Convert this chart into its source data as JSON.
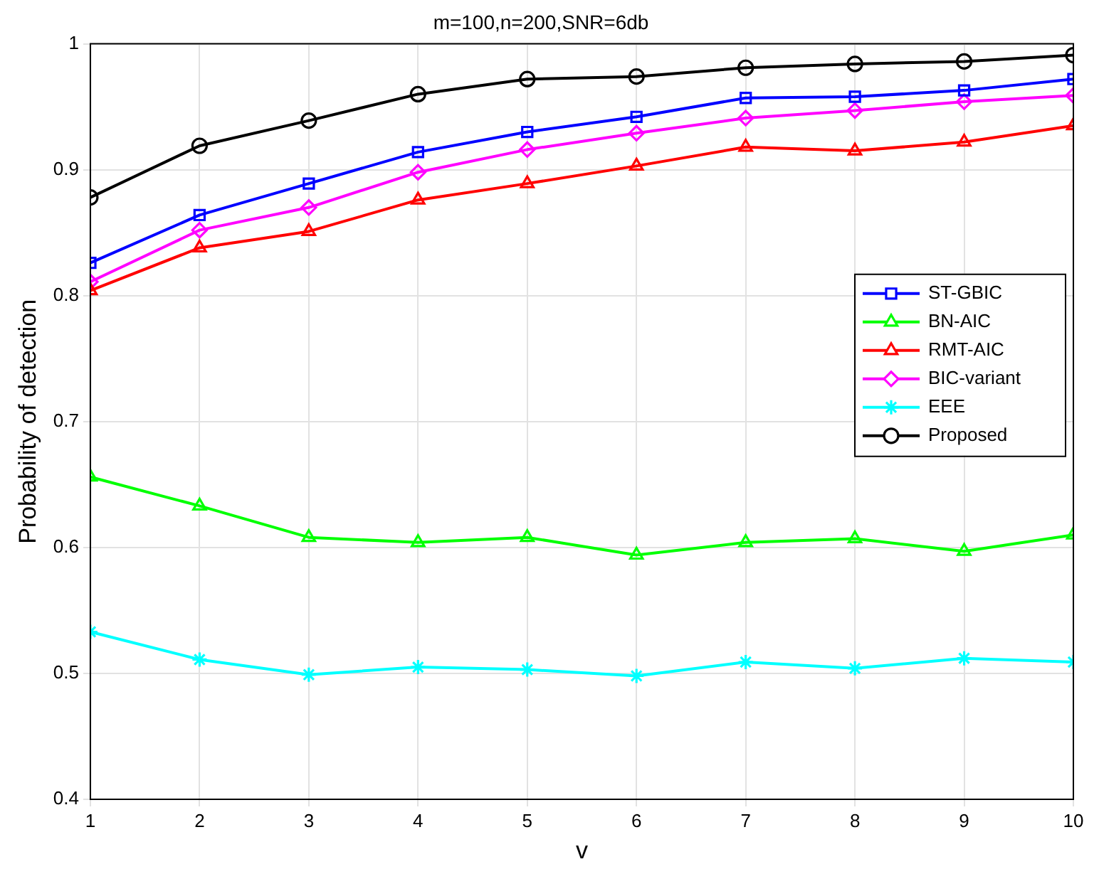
{
  "chart_data": {
    "type": "line",
    "title": "m=100,n=200,SNR=6db",
    "xlabel": "v",
    "ylabel": "Probability of detection",
    "x": [
      1,
      2,
      3,
      4,
      5,
      6,
      7,
      8,
      9,
      10
    ],
    "series": [
      {
        "name": "ST-GBIC",
        "color": "#0000ff",
        "marker": "square",
        "values": [
          0.826,
          0.864,
          0.889,
          0.914,
          0.93,
          0.942,
          0.957,
          0.958,
          0.963,
          0.972
        ]
      },
      {
        "name": "BN-AIC",
        "color": "#00ff00",
        "marker": "triangle",
        "values": [
          0.656,
          0.633,
          0.608,
          0.604,
          0.608,
          0.594,
          0.604,
          0.607,
          0.597,
          0.61
        ]
      },
      {
        "name": "RMT-AIC",
        "color": "#ff0000",
        "marker": "triangle",
        "values": [
          0.804,
          0.838,
          0.851,
          0.876,
          0.889,
          0.903,
          0.918,
          0.915,
          0.922,
          0.935
        ]
      },
      {
        "name": "BIC-variant",
        "color": "#ff00ff",
        "marker": "diamond",
        "values": [
          0.811,
          0.852,
          0.87,
          0.898,
          0.916,
          0.929,
          0.941,
          0.947,
          0.954,
          0.959
        ]
      },
      {
        "name": "EEE",
        "color": "#00ffff",
        "marker": "cross",
        "values": [
          0.533,
          0.511,
          0.499,
          0.505,
          0.503,
          0.498,
          0.509,
          0.504,
          0.512,
          0.509
        ]
      },
      {
        "name": "Proposed",
        "color": "#000000",
        "marker": "circle",
        "values": [
          0.878,
          0.919,
          0.939,
          0.96,
          0.972,
          0.974,
          0.981,
          0.984,
          0.986,
          0.991
        ]
      }
    ],
    "xlim": [
      1,
      10
    ],
    "xticks": [
      1,
      2,
      3,
      4,
      5,
      6,
      7,
      8,
      9,
      10
    ],
    "ylim": [
      0.4,
      1
    ],
    "yticks": [
      0.4,
      0.5,
      0.6,
      0.7,
      0.8,
      0.9,
      1
    ],
    "grid": true,
    "legend": "right",
    "line_style": "solid"
  }
}
